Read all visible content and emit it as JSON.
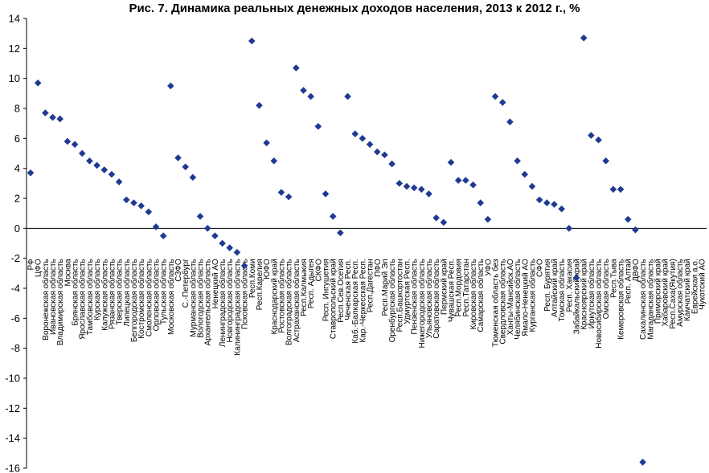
{
  "chart_data": {
    "type": "scatter",
    "title": "Рис. 7. Динамика реальных денежных доходов населения, 2013 к 2012 г., %",
    "xlabel": "",
    "ylabel": "",
    "ylim": [
      -16,
      14
    ],
    "yticks": [
      14,
      12,
      10,
      8,
      6,
      4,
      2,
      0,
      -2,
      -4,
      -6,
      -8,
      -10,
      -12,
      -14,
      -16
    ],
    "grid": false,
    "marker_color": "#1f3a93",
    "marker": "diamond",
    "points": [
      {
        "label": "РФ",
        "value": 3.7
      },
      {
        "label": "ЦФО",
        "value": 9.7
      },
      {
        "label": "Воронежская область",
        "value": 7.7
      },
      {
        "label": "Ивановская область",
        "value": 7.4
      },
      {
        "label": "Владимирская область",
        "value": 7.3
      },
      {
        "label": "Москва",
        "value": 5.8
      },
      {
        "label": "Брянская область",
        "value": 5.6
      },
      {
        "label": "Ярославская область",
        "value": 5.0
      },
      {
        "label": "Тамбовская область",
        "value": 4.5
      },
      {
        "label": "Курская область",
        "value": 4.2
      },
      {
        "label": "Калужская область",
        "value": 3.9
      },
      {
        "label": "Рязанская область",
        "value": 3.6
      },
      {
        "label": "Тверская область",
        "value": 3.1
      },
      {
        "label": "Липецкая область",
        "value": 1.9
      },
      {
        "label": "Белгородская область",
        "value": 1.7
      },
      {
        "label": "Костромская область",
        "value": 1.5
      },
      {
        "label": "Смоленская область",
        "value": 1.1
      },
      {
        "label": "Орловская область",
        "value": 0.1
      },
      {
        "label": "Тульская область",
        "value": -0.5
      },
      {
        "label": "Московская область",
        "value": 9.5
      },
      {
        "label": "СЗФО",
        "value": 4.7
      },
      {
        "label": "С.-Петербург",
        "value": 4.1
      },
      {
        "label": "Мурманская область",
        "value": 3.4
      },
      {
        "label": "Вологодская область",
        "value": 0.8
      },
      {
        "label": "Архангельская область",
        "value": 0.0
      },
      {
        "label": "Ненецкий АО",
        "value": -0.5
      },
      {
        "label": "Ленинградская область",
        "value": -1.0
      },
      {
        "label": "Новгородская область",
        "value": -1.3
      },
      {
        "label": "Калининградская область",
        "value": -1.6
      },
      {
        "label": "Псковская область",
        "value": -2.5
      },
      {
        "label": "Респ.Коми",
        "value": 12.5
      },
      {
        "label": "Респ.Карелия",
        "value": 8.2
      },
      {
        "label": "ЮФО",
        "value": 5.7
      },
      {
        "label": "Краснодарский край",
        "value": 4.5
      },
      {
        "label": "Ростовская область",
        "value": 2.4
      },
      {
        "label": "Волгоградская область",
        "value": 2.1
      },
      {
        "label": "Астраханская область",
        "value": 10.7
      },
      {
        "label": "Респ.Калмыкия",
        "value": 9.2
      },
      {
        "label": "Респ. Адыгея",
        "value": 8.8
      },
      {
        "label": "СКФО",
        "value": 6.8
      },
      {
        "label": "Респ. Ингушетия",
        "value": 2.3
      },
      {
        "label": "Ставропольский край",
        "value": 0.8
      },
      {
        "label": "Респ.Сев.Осетия",
        "value": -0.3
      },
      {
        "label": "Чеченская Респ.",
        "value": 8.8
      },
      {
        "label": "Каб.-Балкарская Респ.",
        "value": 6.3
      },
      {
        "label": "Кар.-Черкесская Респ.",
        "value": 6.0
      },
      {
        "label": "Респ.Дагестан",
        "value": 5.6
      },
      {
        "label": "ПФО",
        "value": 5.1
      },
      {
        "label": "Респ.Марий Эл",
        "value": 4.9
      },
      {
        "label": "Оренбургская область",
        "value": 4.3
      },
      {
        "label": "Респ.Башкортостан",
        "value": 3.0
      },
      {
        "label": "Удмуртская Респ.",
        "value": 2.8
      },
      {
        "label": "Пензенская область",
        "value": 2.7
      },
      {
        "label": "Нижегородская область",
        "value": 2.6
      },
      {
        "label": "Ульяновская область",
        "value": 2.3
      },
      {
        "label": "Саратовская область",
        "value": 0.7
      },
      {
        "label": "Пермский край",
        "value": 0.4
      },
      {
        "label": "Чувашская Респ.",
        "value": 4.4
      },
      {
        "label": "Респ.Мордовия",
        "value": 3.2
      },
      {
        "label": "Респ.Татарстан",
        "value": 3.2
      },
      {
        "label": "Кировская область",
        "value": 2.9
      },
      {
        "label": "Самарская область",
        "value": 1.7
      },
      {
        "label": "УФО",
        "value": 0.6
      },
      {
        "label": "Тюменская область без",
        "value": 8.8
      },
      {
        "label": "Свердловская область",
        "value": 8.4
      },
      {
        "label": "Ханты-Мансийск.АО",
        "value": 7.1
      },
      {
        "label": "Челябинская область",
        "value": 4.5
      },
      {
        "label": "Ямало-Ненецкий АО",
        "value": 3.6
      },
      {
        "label": "Курганская область",
        "value": 2.8
      },
      {
        "label": "СФО",
        "value": 1.9
      },
      {
        "label": "Респ. Бурятия",
        "value": 1.7
      },
      {
        "label": "Алтайский край",
        "value": 1.6
      },
      {
        "label": "Томская область",
        "value": 1.3
      },
      {
        "label": "Респ. Хакасия",
        "value": 0.0
      },
      {
        "label": "Забайкальский край",
        "value": -3.3
      },
      {
        "label": "Красноярский край",
        "value": 12.7
      },
      {
        "label": "Иркутская область",
        "value": 6.2
      },
      {
        "label": "Новосибирская область",
        "value": 5.9
      },
      {
        "label": "Омская область",
        "value": 4.5
      },
      {
        "label": "Респ.Тыва",
        "value": 2.6
      },
      {
        "label": "Кемеровская область",
        "value": 2.6
      },
      {
        "label": "Респ. Алтай",
        "value": 0.6
      },
      {
        "label": "ДВФО",
        "value": -0.1
      },
      {
        "label": "Сахалинская область",
        "value": -15.6
      },
      {
        "label": "Магаданская область",
        "value": null
      },
      {
        "label": "Приморский край",
        "value": null
      },
      {
        "label": "Хабаровский край",
        "value": null
      },
      {
        "label": "Респ.Саха(Якутия)",
        "value": null
      },
      {
        "label": "Амурская область",
        "value": null
      },
      {
        "label": "Камчатский край",
        "value": null
      },
      {
        "label": "Еврейская а.о.",
        "value": null
      },
      {
        "label": "Чукотский АО",
        "value": null
      }
    ]
  }
}
